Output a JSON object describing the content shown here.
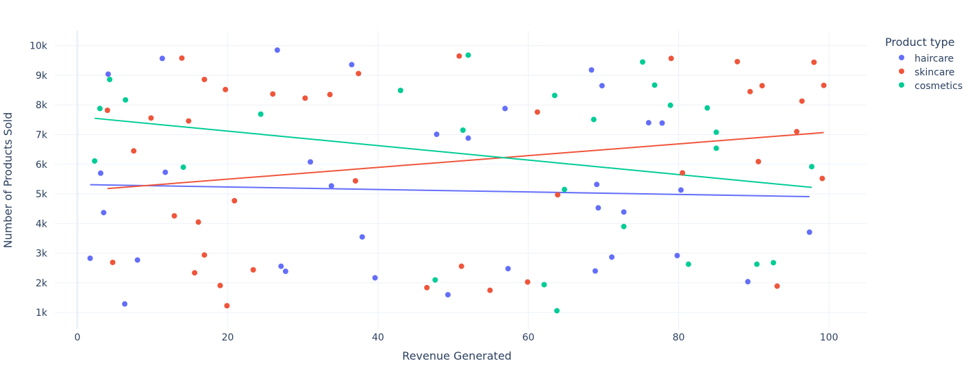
{
  "chart_data": {
    "type": "scatter",
    "xlabel": "Revenue Generated",
    "ylabel": "Number of Products Sold",
    "xlim": [
      -3,
      105
    ],
    "ylim": [
      450,
      10500
    ],
    "x_ticks": [
      0,
      20,
      40,
      60,
      80,
      100
    ],
    "x_tick_labels": [
      "0",
      "20",
      "40",
      "60",
      "80",
      "100"
    ],
    "y_ticks": [
      1000,
      2000,
      3000,
      4000,
      5000,
      6000,
      7000,
      8000,
      9000,
      10000
    ],
    "y_tick_labels": [
      "1k",
      "2k",
      "3k",
      "4k",
      "5k",
      "6k",
      "7k",
      "8k",
      "9k",
      "10k"
    ],
    "grid": true,
    "legend": {
      "title": "Product type",
      "placement": "right"
    },
    "series": [
      {
        "name": "haircare",
        "color": "#636efa",
        "points": [
          [
            1.7,
            2830
          ],
          [
            3.1,
            5700
          ],
          [
            3.5,
            4370
          ],
          [
            4.1,
            9040
          ],
          [
            8.0,
            2770
          ],
          [
            6.3,
            1290
          ],
          [
            11.3,
            9570
          ],
          [
            11.7,
            5730
          ],
          [
            26.6,
            9850
          ],
          [
            27.1,
            2560
          ],
          [
            27.7,
            2390
          ],
          [
            31.0,
            6080
          ],
          [
            33.8,
            5270
          ],
          [
            36.5,
            9360
          ],
          [
            37.9,
            3550
          ],
          [
            39.6,
            2170
          ],
          [
            47.8,
            7010
          ],
          [
            49.3,
            1600
          ],
          [
            52.0,
            6880
          ],
          [
            56.9,
            7880
          ],
          [
            57.3,
            2480
          ],
          [
            68.4,
            9180
          ],
          [
            68.9,
            2400
          ],
          [
            69.1,
            5320
          ],
          [
            69.3,
            4530
          ],
          [
            69.8,
            8650
          ],
          [
            71.1,
            2870
          ],
          [
            72.7,
            4390
          ],
          [
            76.0,
            7400
          ],
          [
            77.8,
            7390
          ],
          [
            79.8,
            2920
          ],
          [
            80.3,
            5130
          ],
          [
            89.2,
            2040
          ],
          [
            97.4,
            3710
          ]
        ],
        "trend": [
          [
            1.7,
            5310
          ],
          [
            97.4,
            4910
          ]
        ]
      },
      {
        "name": "skincare",
        "color": "#ef553b",
        "points": [
          [
            4.0,
            7820
          ],
          [
            4.7,
            2690
          ],
          [
            7.5,
            6450
          ],
          [
            9.8,
            7560
          ],
          [
            12.9,
            4260
          ],
          [
            13.9,
            9580
          ],
          [
            14.8,
            7460
          ],
          [
            15.6,
            2340
          ],
          [
            16.1,
            4050
          ],
          [
            16.9,
            2940
          ],
          [
            16.9,
            8860
          ],
          [
            19.0,
            1910
          ],
          [
            19.7,
            8520
          ],
          [
            19.9,
            1230
          ],
          [
            20.9,
            4770
          ],
          [
            23.4,
            2440
          ],
          [
            26.0,
            8370
          ],
          [
            30.3,
            8230
          ],
          [
            33.6,
            8350
          ],
          [
            37.0,
            5440
          ],
          [
            37.4,
            9060
          ],
          [
            46.5,
            1840
          ],
          [
            50.8,
            9650
          ],
          [
            51.1,
            2560
          ],
          [
            54.9,
            1750
          ],
          [
            59.9,
            2030
          ],
          [
            61.2,
            7760
          ],
          [
            63.9,
            4970
          ],
          [
            79.0,
            9570
          ],
          [
            80.5,
            5710
          ],
          [
            87.8,
            9460
          ],
          [
            89.5,
            8450
          ],
          [
            90.6,
            6090
          ],
          [
            91.1,
            8650
          ],
          [
            93.1,
            1890
          ],
          [
            95.7,
            7100
          ],
          [
            96.4,
            8130
          ],
          [
            98.0,
            9440
          ],
          [
            99.3,
            8660
          ],
          [
            99.1,
            5520
          ]
        ],
        "trend": [
          [
            4.0,
            5180
          ],
          [
            99.3,
            7070
          ]
        ]
      },
      {
        "name": "cosmetics",
        "color": "#00cc96",
        "points": [
          [
            2.3,
            6110
          ],
          [
            3.0,
            7880
          ],
          [
            4.3,
            8860
          ],
          [
            6.4,
            8170
          ],
          [
            14.1,
            5900
          ],
          [
            24.4,
            7690
          ],
          [
            43.0,
            8490
          ],
          [
            47.6,
            2100
          ],
          [
            51.3,
            7150
          ],
          [
            52.0,
            9680
          ],
          [
            62.1,
            1940
          ],
          [
            63.5,
            8320
          ],
          [
            63.8,
            1060
          ],
          [
            64.8,
            5150
          ],
          [
            68.7,
            7510
          ],
          [
            72.7,
            3900
          ],
          [
            75.2,
            9450
          ],
          [
            76.8,
            8670
          ],
          [
            78.9,
            7990
          ],
          [
            81.3,
            2630
          ],
          [
            83.8,
            7900
          ],
          [
            85.0,
            7080
          ],
          [
            85.0,
            6540
          ],
          [
            90.4,
            2630
          ],
          [
            92.6,
            2680
          ],
          [
            97.7,
            5920
          ]
        ],
        "trend": [
          [
            2.3,
            7550
          ],
          [
            97.7,
            5220
          ]
        ]
      }
    ]
  }
}
